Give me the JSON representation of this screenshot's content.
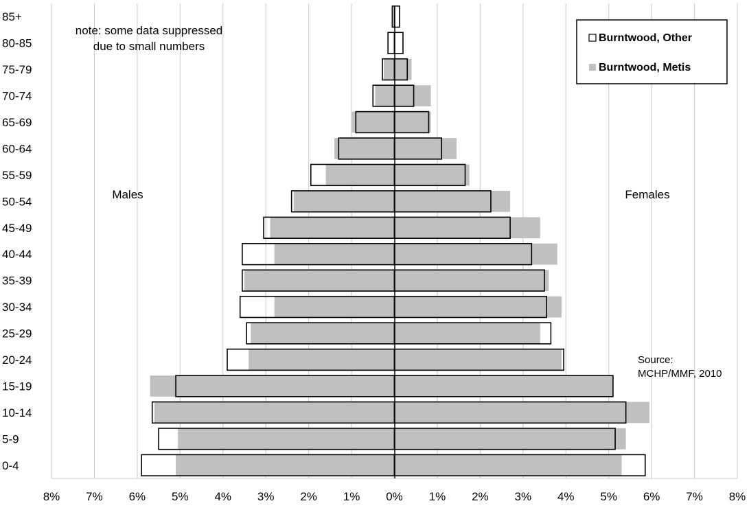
{
  "chart_data": {
    "type": "bar",
    "orientation": "horizontal",
    "categories": [
      "0-4",
      "5-9",
      "10-14",
      "15-19",
      "20-24",
      "25-29",
      "30-34",
      "35-39",
      "40-44",
      "45-49",
      "50-54",
      "55-59",
      "60-64",
      "65-69",
      "70-74",
      "75-79",
      "80-85",
      "85+"
    ],
    "series": [
      {
        "name": "Burntwood, Other",
        "color": "#ffffff",
        "stroke": "#000000",
        "males": [
          5.9,
          5.5,
          5.65,
          5.1,
          3.9,
          3.45,
          3.6,
          3.55,
          3.55,
          3.05,
          2.4,
          1.95,
          1.3,
          0.9,
          0.5,
          0.28,
          0.15,
          0.05
        ],
        "females": [
          5.85,
          5.15,
          5.4,
          5.1,
          3.95,
          3.65,
          3.55,
          3.5,
          3.2,
          2.7,
          2.25,
          1.65,
          1.1,
          0.8,
          0.45,
          0.3,
          0.2,
          0.12
        ]
      },
      {
        "name": "Burntwood, Metis",
        "color": "#c0c0c0",
        "males": [
          5.1,
          5.05,
          5.6,
          5.7,
          3.4,
          3.35,
          2.8,
          3.5,
          2.8,
          2.9,
          2.35,
          1.6,
          1.4,
          1.0,
          0.45,
          0.25,
          0.0,
          0.0
        ],
        "females": [
          5.3,
          5.4,
          5.95,
          5.1,
          3.9,
          3.4,
          3.9,
          3.6,
          3.8,
          3.4,
          2.7,
          1.75,
          1.45,
          0.85,
          0.85,
          0.4,
          0.0,
          0.0
        ]
      }
    ],
    "x_ticks": [
      "8%",
      "7%",
      "6%",
      "5%",
      "4%",
      "3%",
      "2%",
      "1%",
      "0%",
      "1%",
      "2%",
      "3%",
      "4%",
      "5%",
      "6%",
      "7%",
      "8%"
    ],
    "xlim": [
      -8,
      8
    ],
    "grid": "vertical",
    "legend_position": "top-right",
    "annotations": {
      "males": "Males",
      "females": "Females",
      "note_line1": "note: some data suppressed",
      "note_line2": "due to small numbers",
      "source_line1": "Source:",
      "source_line2": "MCHP/MMF, 2010"
    }
  }
}
